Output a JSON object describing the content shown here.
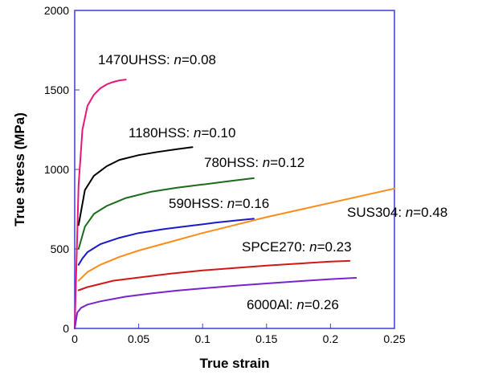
{
  "chart_data": {
    "type": "line",
    "title": "",
    "xlabel": "True strain",
    "ylabel": "True stress (MPa)",
    "xlim": [
      0,
      0.25
    ],
    "ylim": [
      0,
      2000
    ],
    "xticks": [
      "0",
      "0.05",
      "0.1",
      "0.15",
      "0.2",
      "0.25"
    ],
    "xtick_values": [
      0,
      0.05,
      0.1,
      0.15,
      0.2,
      0.25
    ],
    "yticks": [
      "0",
      "500",
      "1000",
      "1500",
      "2000"
    ],
    "ytick_values": [
      0,
      500,
      1000,
      1500,
      2000
    ],
    "grid": false,
    "series": [
      {
        "name": "1470UHSS",
        "n_label": "n",
        "n_value": "=0.08",
        "color": "#e8157a",
        "x": [
          0,
          0.003,
          0.006,
          0.01,
          0.015,
          0.02,
          0.025,
          0.03,
          0.035,
          0.04
        ],
        "y": [
          0,
          900,
          1250,
          1400,
          1470,
          1510,
          1535,
          1550,
          1560,
          1565
        ]
      },
      {
        "name": "1180HSS",
        "n_label": "n",
        "n_value": "=0.10",
        "color": "#000000",
        "x": [
          0.003,
          0.008,
          0.015,
          0.025,
          0.035,
          0.05,
          0.065,
          0.08,
          0.092
        ],
        "y": [
          650,
          870,
          960,
          1020,
          1060,
          1090,
          1110,
          1128,
          1140
        ]
      },
      {
        "name": "780HSS",
        "n_label": "n",
        "n_value": "=0.12",
        "color": "#1a6b1a",
        "x": [
          0.003,
          0.008,
          0.015,
          0.025,
          0.04,
          0.06,
          0.08,
          0.1,
          0.12,
          0.14
        ],
        "y": [
          500,
          640,
          720,
          770,
          820,
          860,
          885,
          905,
          925,
          945
        ]
      },
      {
        "name": "590HSS",
        "n_label": "n",
        "n_value": "=0.16",
        "color": "#1a1acc",
        "x": [
          0.003,
          0.006,
          0.01,
          0.02,
          0.035,
          0.05,
          0.07,
          0.09,
          0.11,
          0.125,
          0.14
        ],
        "y": [
          400,
          440,
          480,
          530,
          570,
          600,
          625,
          645,
          665,
          678,
          690
        ]
      },
      {
        "name": "SUS304",
        "n_label": "n",
        "n_value": "=0.48",
        "color": "#ff8c1a",
        "x": [
          0.003,
          0.01,
          0.02,
          0.035,
          0.05,
          0.075,
          0.1,
          0.125,
          0.15,
          0.175,
          0.2,
          0.225,
          0.25
        ],
        "y": [
          300,
          355,
          400,
          450,
          490,
          545,
          600,
          650,
          700,
          745,
          790,
          835,
          880
        ]
      },
      {
        "name": "SPCE270",
        "n_label": "n",
        "n_value": "=0.23",
        "color": "#d01818",
        "x": [
          0.003,
          0.01,
          0.02,
          0.03,
          0.05,
          0.075,
          0.1,
          0.125,
          0.15,
          0.175,
          0.2,
          0.215
        ],
        "y": [
          240,
          260,
          280,
          300,
          320,
          345,
          365,
          380,
          395,
          408,
          420,
          425
        ]
      },
      {
        "name": "6000Al",
        "n_label": "n",
        "n_value": "=0.26",
        "color": "#7a22cc",
        "x": [
          0,
          0.002,
          0.005,
          0.01,
          0.02,
          0.04,
          0.06,
          0.08,
          0.1,
          0.125,
          0.15,
          0.175,
          0.2,
          0.22
        ],
        "y": [
          0,
          100,
          130,
          150,
          170,
          200,
          220,
          238,
          252,
          268,
          283,
          297,
          310,
          318
        ]
      }
    ]
  }
}
